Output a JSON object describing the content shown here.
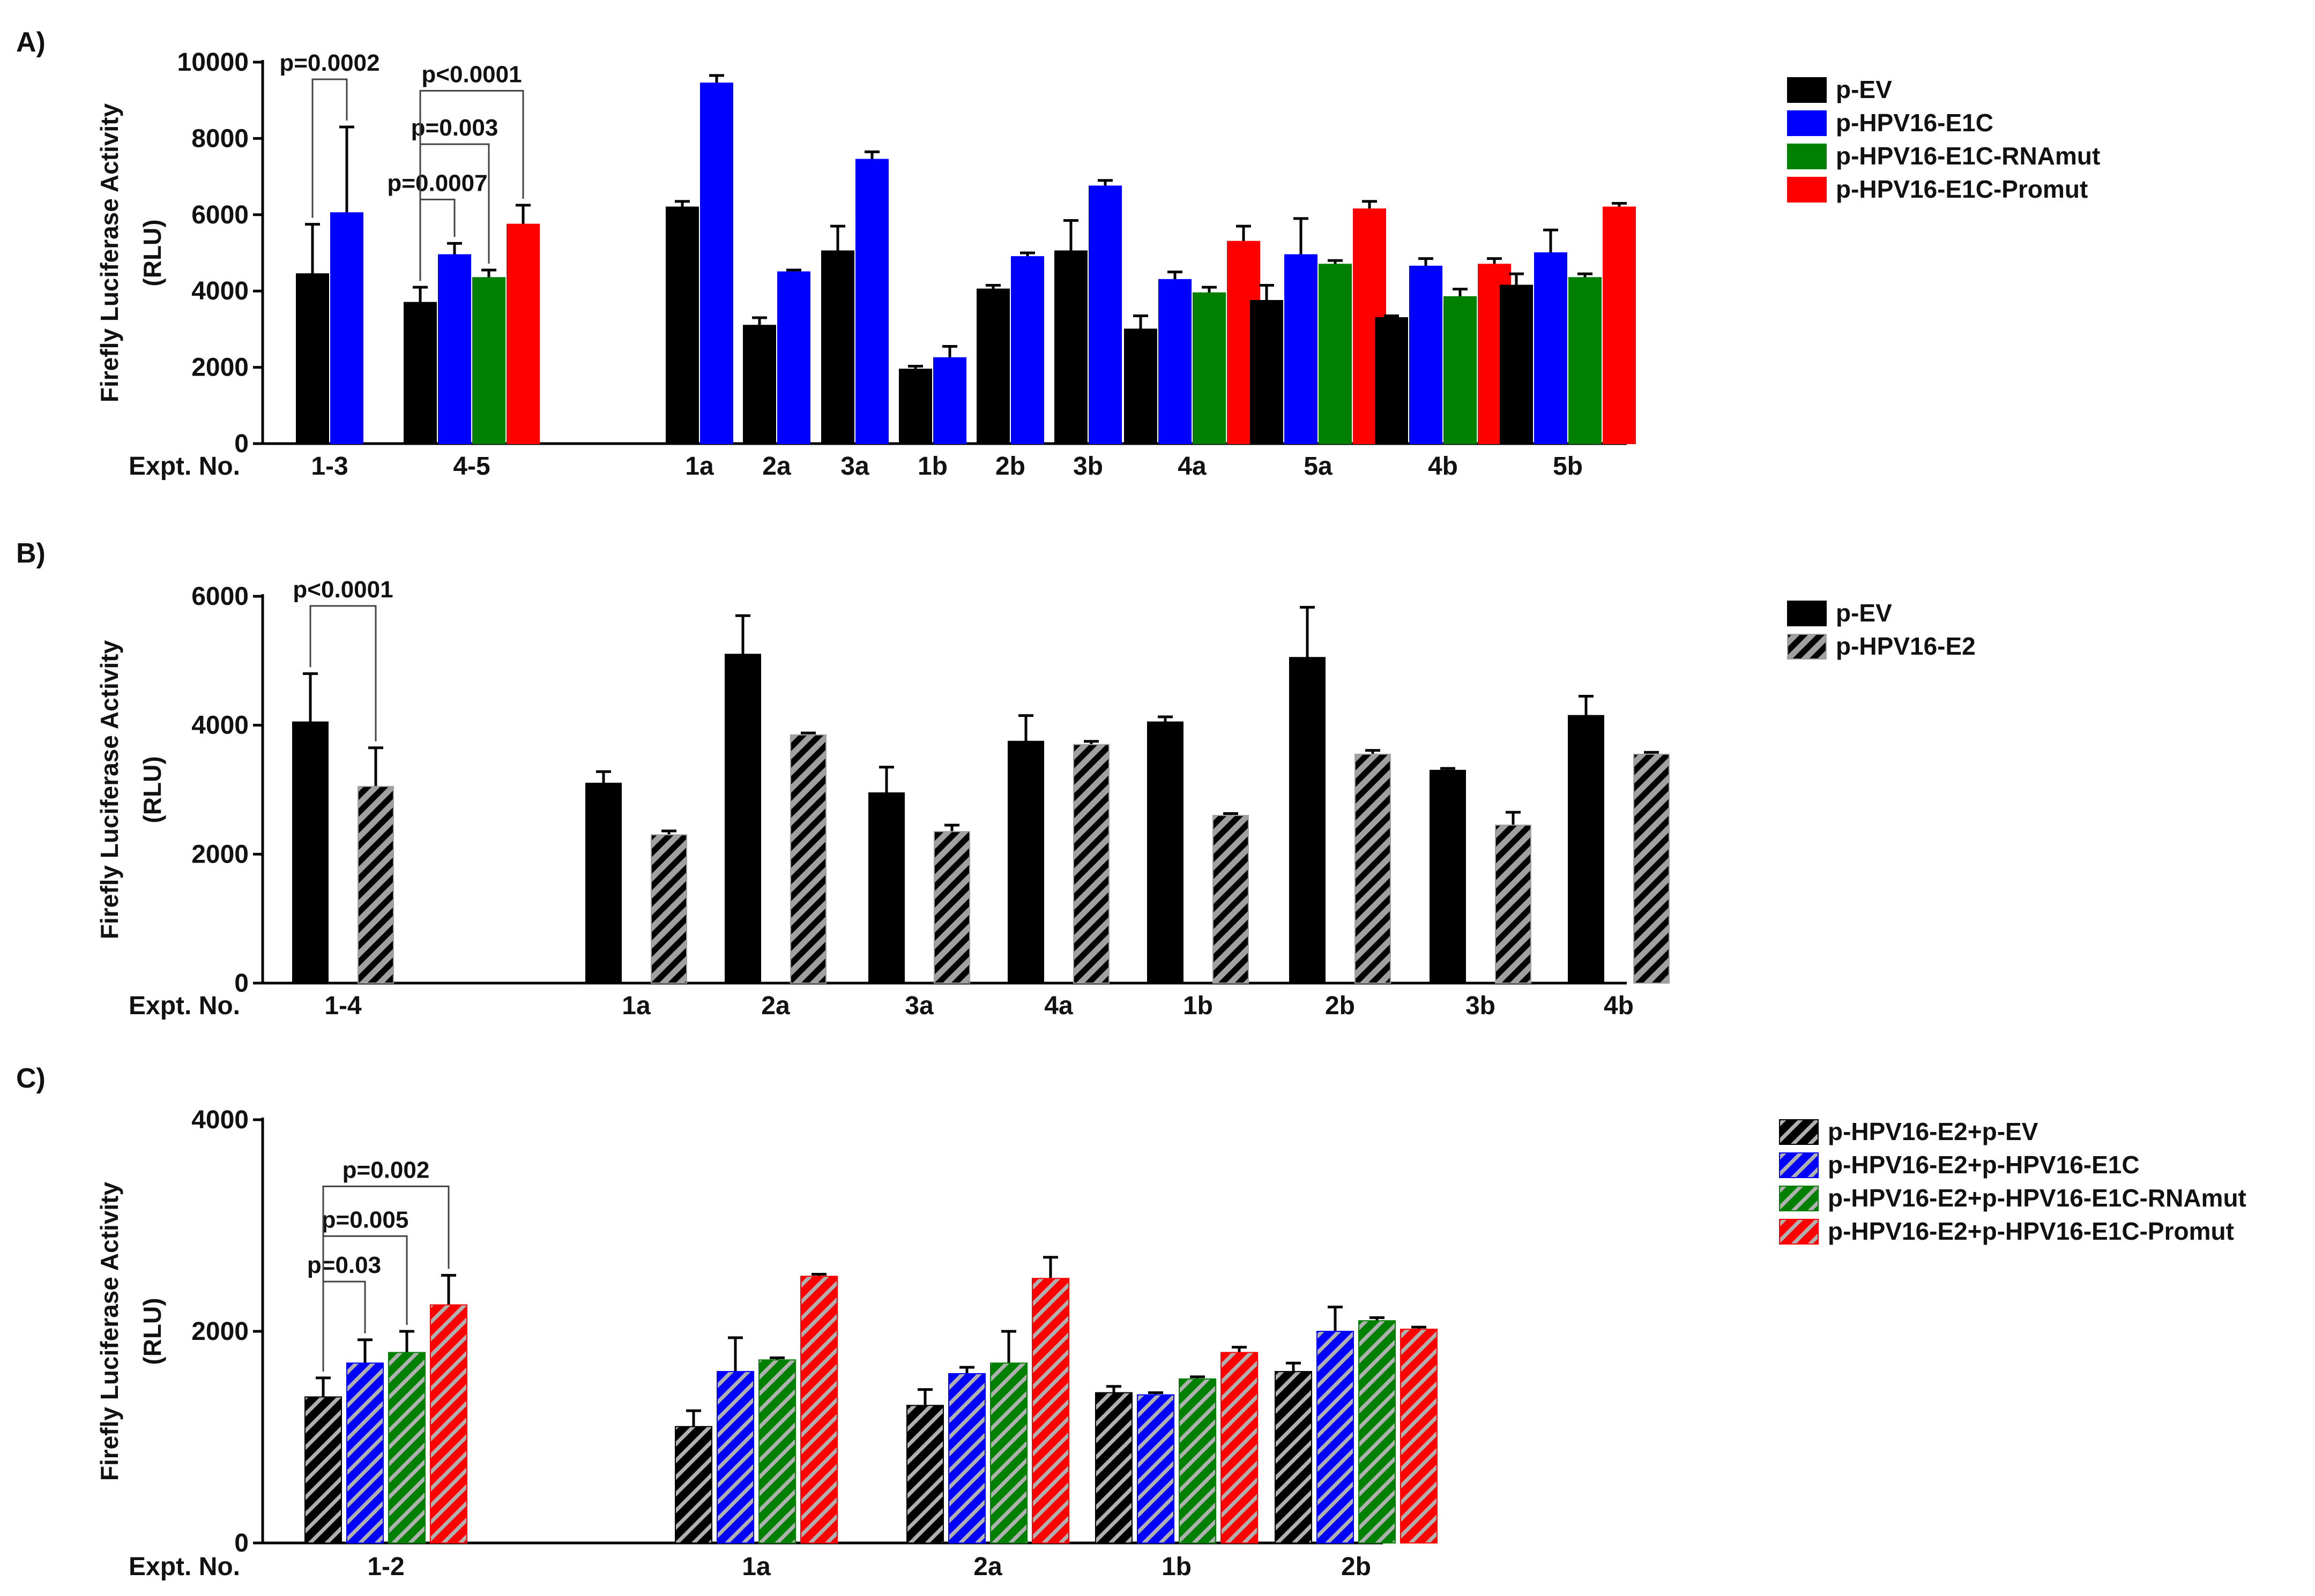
{
  "figure": {
    "xaxis_prefix": "Expt. No.",
    "ylabel_line1": "Firefly Luciferase Activity",
    "ylabel_line2": "(RLU)"
  },
  "colors": {
    "black": "#000000",
    "blue": "#0000ff",
    "green": "#008000",
    "red": "#ff0000",
    "gray": "#a0a0a0"
  },
  "chart_data": [
    {
      "type": "bar",
      "panel": "A)",
      "ylim": [
        0,
        10000
      ],
      "yticks": [
        0,
        2000,
        4000,
        6000,
        8000,
        10000
      ],
      "xlabel": "Expt. No.",
      "ylabel": "Firefly Luciferase Activity (RLU)",
      "legend_position": "right",
      "series": [
        {
          "name": "p-EV",
          "color": "#000000",
          "pattern": "solid"
        },
        {
          "name": "p-HPV16-E1C",
          "color": "#0000ff",
          "pattern": "solid"
        },
        {
          "name": "p-HPV16-E1C-RNAmut",
          "color": "#008000",
          "pattern": "solid"
        },
        {
          "name": "p-HPV16-E1C-Promut",
          "color": "#ff0000",
          "pattern": "solid"
        }
      ],
      "groups": [
        {
          "label": "1-3",
          "bars": [
            {
              "s": 0,
              "v": 4450,
              "e": 1300
            },
            {
              "s": 1,
              "v": 6050,
              "e": 2250
            }
          ]
        },
        {
          "label": "4-5",
          "bars": [
            {
              "s": 0,
              "v": 3700,
              "e": 400
            },
            {
              "s": 1,
              "v": 4950,
              "e": 300
            },
            {
              "s": 2,
              "v": 4350,
              "e": 200
            },
            {
              "s": 3,
              "v": 5750,
              "e": 500
            }
          ]
        },
        {
          "label": "1a",
          "bars": [
            {
              "s": 0,
              "v": 6200,
              "e": 150
            },
            {
              "s": 1,
              "v": 9450,
              "e": 200
            }
          ]
        },
        {
          "label": "2a",
          "bars": [
            {
              "s": 0,
              "v": 3100,
              "e": 200
            },
            {
              "s": 1,
              "v": 4500,
              "e": 50
            }
          ]
        },
        {
          "label": "3a",
          "bars": [
            {
              "s": 0,
              "v": 5050,
              "e": 650
            },
            {
              "s": 1,
              "v": 7450,
              "e": 200
            }
          ]
        },
        {
          "label": "1b",
          "bars": [
            {
              "s": 0,
              "v": 1950,
              "e": 80
            },
            {
              "s": 1,
              "v": 2250,
              "e": 300
            }
          ]
        },
        {
          "label": "2b",
          "bars": [
            {
              "s": 0,
              "v": 4050,
              "e": 100
            },
            {
              "s": 1,
              "v": 4900,
              "e": 100
            }
          ]
        },
        {
          "label": "3b",
          "bars": [
            {
              "s": 0,
              "v": 5050,
              "e": 800
            },
            {
              "s": 1,
              "v": 6750,
              "e": 150
            }
          ]
        },
        {
          "label": "4a",
          "bars": [
            {
              "s": 0,
              "v": 3000,
              "e": 350
            },
            {
              "s": 1,
              "v": 4300,
              "e": 200
            },
            {
              "s": 2,
              "v": 3950,
              "e": 150
            },
            {
              "s": 3,
              "v": 5300,
              "e": 400
            }
          ]
        },
        {
          "label": "5a",
          "bars": [
            {
              "s": 0,
              "v": 3750,
              "e": 400
            },
            {
              "s": 1,
              "v": 4950,
              "e": 950
            },
            {
              "s": 2,
              "v": 4700,
              "e": 100
            },
            {
              "s": 3,
              "v": 6150,
              "e": 200
            }
          ]
        },
        {
          "label": "4b",
          "bars": [
            {
              "s": 0,
              "v": 3300,
              "e": 50
            },
            {
              "s": 1,
              "v": 4650,
              "e": 200
            },
            {
              "s": 2,
              "v": 3850,
              "e": 200
            },
            {
              "s": 3,
              "v": 4700,
              "e": 150
            }
          ]
        },
        {
          "label": "5b",
          "bars": [
            {
              "s": 0,
              "v": 4150,
              "e": 300
            },
            {
              "s": 1,
              "v": 5000,
              "e": 600
            },
            {
              "s": 2,
              "v": 4350,
              "e": 100
            },
            {
              "s": 3,
              "v": 6200,
              "e": 100
            }
          ]
        }
      ],
      "comparisons": [
        {
          "label": "p=0.0002",
          "group": 0,
          "from": 0,
          "to": 1,
          "y": 9550
        },
        {
          "label": "p=0.0007",
          "group": 1,
          "from": 0,
          "to": 1,
          "y": 6400
        },
        {
          "label": "p=0.003",
          "group": 1,
          "from": 0,
          "to": 2,
          "y": 7850
        },
        {
          "label": "p<0.0001",
          "group": 1,
          "from": 0,
          "to": 3,
          "y": 9250
        }
      ]
    },
    {
      "type": "bar",
      "panel": "B)",
      "ylim": [
        0,
        6000
      ],
      "yticks": [
        0,
        2000,
        4000,
        6000
      ],
      "xlabel": "Expt. No.",
      "ylabel": "Firefly Luciferase Activity (RLU)",
      "legend_position": "right",
      "series": [
        {
          "name": "p-EV",
          "color": "#000000",
          "pattern": "solid"
        },
        {
          "name": "p-HPV16-E2",
          "color": "#a0a0a0",
          "pattern": "hatch",
          "stripe": "#000000"
        }
      ],
      "groups": [
        {
          "label": "1-4",
          "bars": [
            {
              "s": 0,
              "v": 4050,
              "e": 750
            },
            {
              "s": 1,
              "v": 3050,
              "e": 600
            }
          ]
        },
        {
          "label": "1a",
          "bars": [
            {
              "s": 0,
              "v": 3100,
              "e": 180
            },
            {
              "s": 1,
              "v": 2300,
              "e": 60
            }
          ]
        },
        {
          "label": "2a",
          "bars": [
            {
              "s": 0,
              "v": 5100,
              "e": 600
            },
            {
              "s": 1,
              "v": 3850,
              "e": 30
            }
          ]
        },
        {
          "label": "3a",
          "bars": [
            {
              "s": 0,
              "v": 2950,
              "e": 400
            },
            {
              "s": 1,
              "v": 2350,
              "e": 100
            }
          ]
        },
        {
          "label": "4a",
          "bars": [
            {
              "s": 0,
              "v": 3750,
              "e": 400
            },
            {
              "s": 1,
              "v": 3700,
              "e": 50
            }
          ]
        },
        {
          "label": "1b",
          "bars": [
            {
              "s": 0,
              "v": 4050,
              "e": 80
            },
            {
              "s": 1,
              "v": 2600,
              "e": 30
            }
          ]
        },
        {
          "label": "2b",
          "bars": [
            {
              "s": 0,
              "v": 5050,
              "e": 780
            },
            {
              "s": 1,
              "v": 3550,
              "e": 60
            }
          ]
        },
        {
          "label": "3b",
          "bars": [
            {
              "s": 0,
              "v": 3300,
              "e": 30
            },
            {
              "s": 1,
              "v": 2450,
              "e": 200
            }
          ]
        },
        {
          "label": "4b",
          "bars": [
            {
              "s": 0,
              "v": 4150,
              "e": 300
            },
            {
              "s": 1,
              "v": 3550,
              "e": 30
            }
          ]
        }
      ],
      "comparisons": [
        {
          "label": "p<0.0001",
          "group": 0,
          "from": 0,
          "to": 1,
          "y": 5850
        }
      ]
    },
    {
      "type": "bar",
      "panel": "C)",
      "ylim": [
        0,
        4000
      ],
      "yticks": [
        0,
        2000,
        4000
      ],
      "xlabel": "Expt. No.",
      "ylabel": "Firefly Luciferase Activity (RLU)",
      "legend_position": "right",
      "series": [
        {
          "name": "p-HPV16-E2+p-EV",
          "color": "#000000",
          "pattern": "hatch",
          "stripe": "#b0b0b0"
        },
        {
          "name": "p-HPV16-E2+p-HPV16-E1C",
          "color": "#0000ff",
          "pattern": "hatch",
          "stripe": "#b0b0b0"
        },
        {
          "name": "p-HPV16-E2+p-HPV16-E1C-RNAmut",
          "color": "#008000",
          "pattern": "hatch",
          "stripe": "#b0b0b0"
        },
        {
          "name": "p-HPV16-E2+p-HPV16-E1C-Promut",
          "color": "#ff0000",
          "pattern": "hatch",
          "stripe": "#b0b0b0"
        }
      ],
      "groups": [
        {
          "label": "1-2",
          "bars": [
            {
              "s": 0,
              "v": 1380,
              "e": 180
            },
            {
              "s": 1,
              "v": 1700,
              "e": 220
            },
            {
              "s": 2,
              "v": 1800,
              "e": 200
            },
            {
              "s": 3,
              "v": 2250,
              "e": 280
            }
          ]
        },
        {
          "label": "1a",
          "bars": [
            {
              "s": 0,
              "v": 1100,
              "e": 150
            },
            {
              "s": 1,
              "v": 1620,
              "e": 320
            },
            {
              "s": 2,
              "v": 1730,
              "e": 20
            },
            {
              "s": 3,
              "v": 2520,
              "e": 20
            }
          ]
        },
        {
          "label": "2a",
          "bars": [
            {
              "s": 0,
              "v": 1300,
              "e": 150
            },
            {
              "s": 1,
              "v": 1600,
              "e": 60
            },
            {
              "s": 2,
              "v": 1700,
              "e": 300
            },
            {
              "s": 3,
              "v": 2500,
              "e": 200
            }
          ]
        },
        {
          "label": "1b",
          "bars": [
            {
              "s": 0,
              "v": 1420,
              "e": 60
            },
            {
              "s": 1,
              "v": 1400,
              "e": 20
            },
            {
              "s": 2,
              "v": 1550,
              "e": 20
            },
            {
              "s": 3,
              "v": 1800,
              "e": 50
            }
          ]
        },
        {
          "label": "2b",
          "bars": [
            {
              "s": 0,
              "v": 1620,
              "e": 80
            },
            {
              "s": 1,
              "v": 2000,
              "e": 230
            },
            {
              "s": 2,
              "v": 2100,
              "e": 30
            },
            {
              "s": 3,
              "v": 2020,
              "e": 20
            }
          ]
        }
      ],
      "comparisons": [
        {
          "label": "p=0.03",
          "group": 0,
          "from": 0,
          "to": 1,
          "y": 2470
        },
        {
          "label": "p=0.005",
          "group": 0,
          "from": 0,
          "to": 2,
          "y": 2900
        },
        {
          "label": "p=0.002",
          "group": 0,
          "from": 0,
          "to": 3,
          "y": 3370
        }
      ]
    }
  ]
}
